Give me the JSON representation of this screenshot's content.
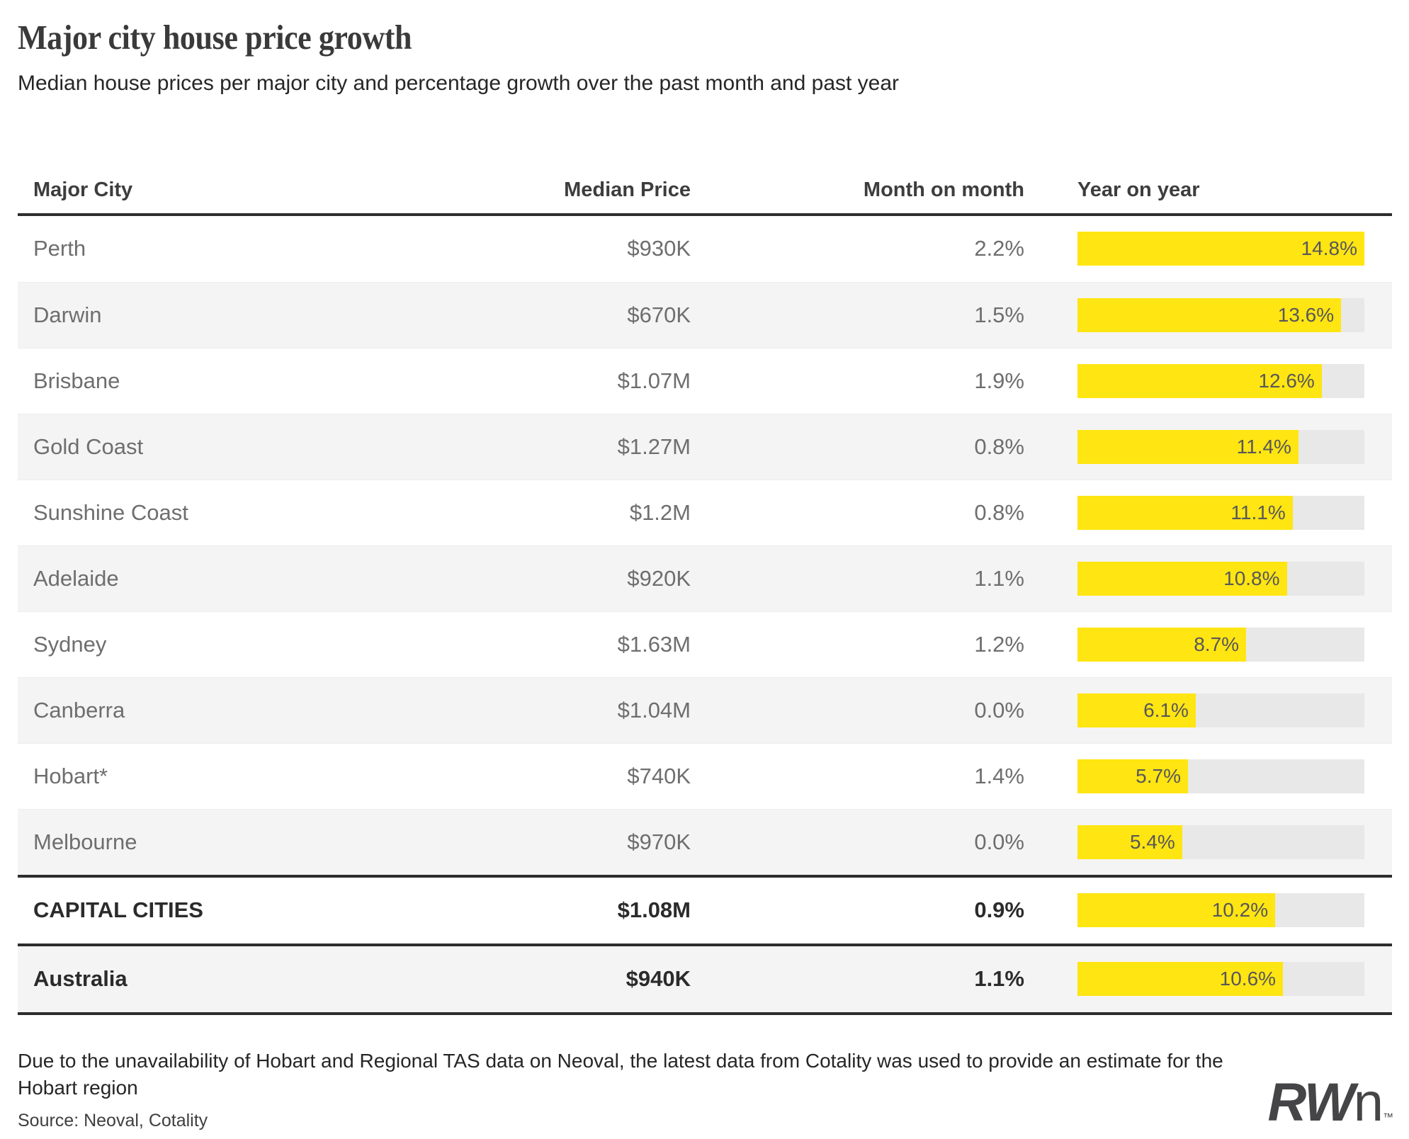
{
  "header": {
    "title": "Major city house price growth",
    "subtitle": "Median house prices per major city and percentage growth over the past month and past year"
  },
  "chart_data": {
    "type": "bar",
    "orientation": "horizontal",
    "title": "Major city house price growth",
    "subtitle": "Median house prices per major city and percentage growth over the past month and past year",
    "columns": [
      "Major City",
      "Median Price",
      "Month on month",
      "Year on year"
    ],
    "bar_column": "Year on year",
    "bar_scale_max": 14.8,
    "xlim": [
      0,
      14.8
    ],
    "bar_color": "#ffe512",
    "track_color": "#e8e8e8",
    "rows": [
      {
        "city": "Perth",
        "median_price": "$930K",
        "month_on_month": "2.2%",
        "year_on_year": "14.8%",
        "yoy_value": 14.8,
        "emphasis": false
      },
      {
        "city": "Darwin",
        "median_price": "$670K",
        "month_on_month": "1.5%",
        "year_on_year": "13.6%",
        "yoy_value": 13.6,
        "emphasis": false
      },
      {
        "city": "Brisbane",
        "median_price": "$1.07M",
        "month_on_month": "1.9%",
        "year_on_year": "12.6%",
        "yoy_value": 12.6,
        "emphasis": false
      },
      {
        "city": "Gold Coast",
        "median_price": "$1.27M",
        "month_on_month": "0.8%",
        "year_on_year": "11.4%",
        "yoy_value": 11.4,
        "emphasis": false
      },
      {
        "city": "Sunshine Coast",
        "median_price": "$1.2M",
        "month_on_month": "0.8%",
        "year_on_year": "11.1%",
        "yoy_value": 11.1,
        "emphasis": false
      },
      {
        "city": "Adelaide",
        "median_price": "$920K",
        "month_on_month": "1.1%",
        "year_on_year": "10.8%",
        "yoy_value": 10.8,
        "emphasis": false
      },
      {
        "city": "Sydney",
        "median_price": "$1.63M",
        "month_on_month": "1.2%",
        "year_on_year": "8.7%",
        "yoy_value": 8.7,
        "emphasis": false
      },
      {
        "city": "Canberra",
        "median_price": "$1.04M",
        "month_on_month": "0.0%",
        "year_on_year": "6.1%",
        "yoy_value": 6.1,
        "emphasis": false
      },
      {
        "city": "Hobart*",
        "median_price": "$740K",
        "month_on_month": "1.4%",
        "year_on_year": "5.7%",
        "yoy_value": 5.7,
        "emphasis": false
      },
      {
        "city": "Melbourne",
        "median_price": "$970K",
        "month_on_month": "0.0%",
        "year_on_year": "5.4%",
        "yoy_value": 5.4,
        "emphasis": false
      },
      {
        "city": "CAPITAL CITIES",
        "median_price": "$1.08M",
        "month_on_month": "0.9%",
        "year_on_year": "10.2%",
        "yoy_value": 10.2,
        "emphasis": true
      },
      {
        "city": "Australia",
        "median_price": "$940K",
        "month_on_month": "1.1%",
        "year_on_year": "10.6%",
        "yoy_value": 10.6,
        "emphasis": true
      }
    ]
  },
  "footnote": "Due to the unavailability of Hobart and Regional TAS data on Neoval, the latest data from Cotality was used to provide an estimate for the Hobart region",
  "source": "Source: Neoval, Cotality",
  "logo": {
    "rw": "RW",
    "n": "n",
    "tm": "™"
  }
}
